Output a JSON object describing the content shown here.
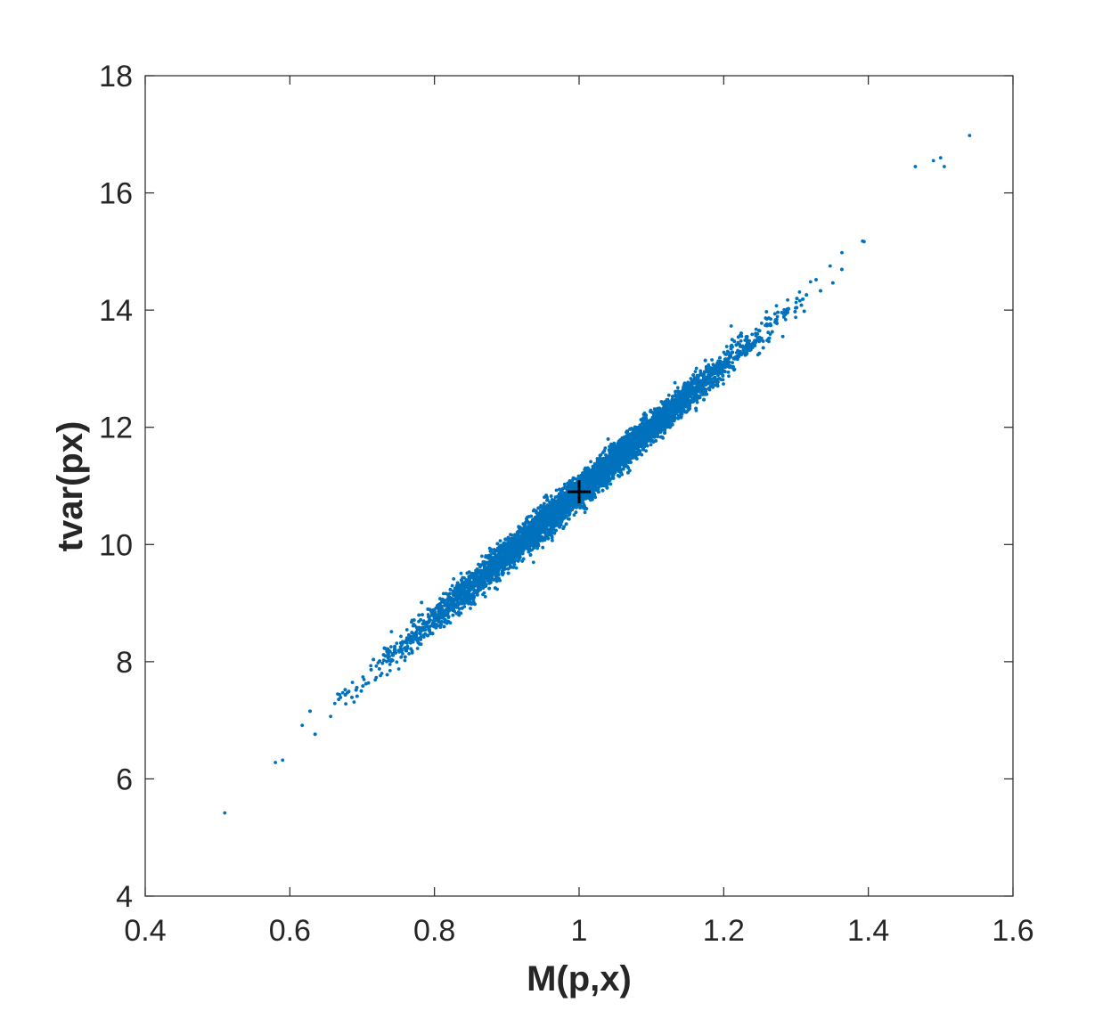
{
  "chart_data": {
    "type": "scatter",
    "title": "",
    "xlabel": "M(p,x)",
    "ylabel": "tvar(px)",
    "xlim": [
      0.4,
      1.6
    ],
    "ylim": [
      4,
      18
    ],
    "xticks": [
      0.4,
      0.6,
      0.8,
      1,
      1.2,
      1.4,
      1.6
    ],
    "yticks": [
      4,
      6,
      8,
      10,
      12,
      14,
      16,
      18
    ],
    "xtick_labels": [
      "0.4",
      "0.6",
      "0.8",
      "1",
      "1.2",
      "1.4",
      "1.6"
    ],
    "ytick_labels": [
      "4",
      "6",
      "8",
      "10",
      "12",
      "14",
      "16",
      "18"
    ],
    "grid": false,
    "legend": "none",
    "colors": {
      "points": "#0072BD",
      "marker": "#000000",
      "axes": "#262626"
    },
    "series": [
      {
        "marker": "dot",
        "trend": {
          "slope": 10.8,
          "intercept": 0.1
        },
        "x_range": [
          0.51,
          1.54
        ],
        "approx_points": 10000,
        "outliers": [
          {
            "x": 0.51,
            "y": 5.42
          },
          {
            "x": 0.58,
            "y": 6.28
          },
          {
            "x": 0.59,
            "y": 6.32
          },
          {
            "x": 1.54,
            "y": 16.98
          },
          {
            "x": 1.505,
            "y": 16.45
          },
          {
            "x": 1.5,
            "y": 16.6
          },
          {
            "x": 1.49,
            "y": 16.55
          },
          {
            "x": 1.465,
            "y": 16.45
          }
        ]
      }
    ],
    "annotations": [
      {
        "marker": "plus",
        "x": 1.0,
        "y": 10.9
      }
    ]
  }
}
